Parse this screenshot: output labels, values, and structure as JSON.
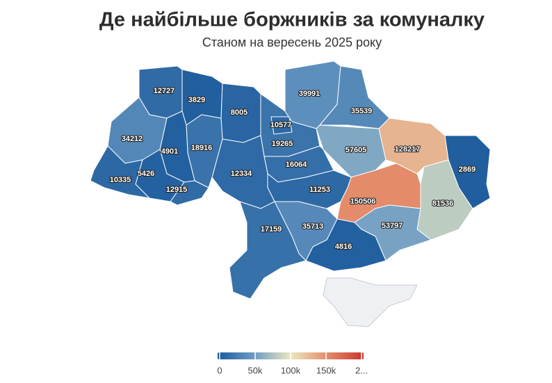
{
  "chart_data": {
    "type": "choropleth",
    "title": "Де найбільше боржників за комуналку",
    "subtitle": "Станом на вересень 2025 року",
    "values": [
      12727,
      3829,
      8005,
      19265,
      10577,
      39991,
      35539,
      57605,
      128217,
      2869,
      81536,
      150506,
      53797,
      4816,
      35713,
      16064,
      11253,
      12334,
      17159,
      18916,
      4901,
      34212,
      5426,
      10335,
      12915
    ],
    "colorscale": [
      "#1b5a9c",
      "#6d9cc4",
      "#ebe8c0",
      "#e38c6b",
      "#c8352f"
    ],
    "zlim": [
      0,
      200000
    ],
    "zticks": [
      0,
      {
        "value": 50000,
        "label": "50k"
      },
      {
        "value": 100000,
        "label": "100k"
      },
      {
        "value": 150000,
        "label": "150k"
      },
      {
        "value": 200000,
        "label": "2..."
      }
    ]
  }
}
